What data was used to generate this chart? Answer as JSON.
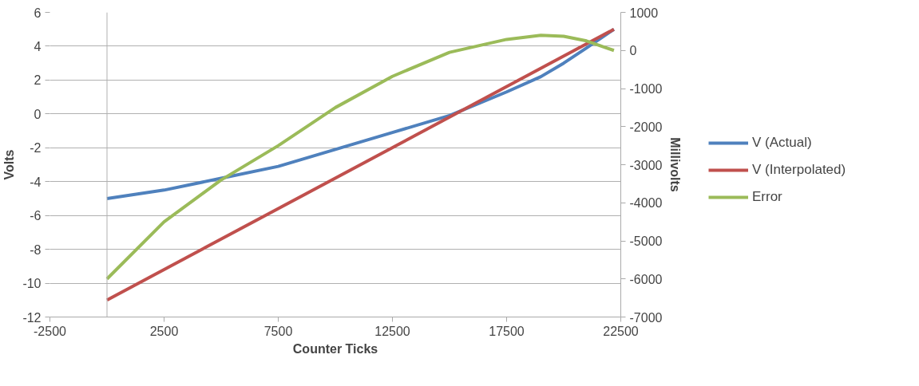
{
  "chart_data": {
    "type": "line",
    "xlabel": "Counter Ticks",
    "ylabel": "Volts",
    "y2label": "Millivolts",
    "x": [
      0,
      2500,
      5000,
      7500,
      10000,
      12500,
      15000,
      17500,
      19000,
      20000,
      21000,
      22200
    ],
    "series": [
      {
        "name": "V (Actual)",
        "color": "#4f81bd",
        "values": [
          -5.0,
          -4.5,
          -3.8,
          -3.1,
          -2.1,
          -1.1,
          -0.1,
          1.3,
          2.2,
          3.0,
          3.9,
          5.0
        ]
      },
      {
        "name": "V (Interpolated)",
        "color": "#c0504d",
        "x": [
          0,
          22200
        ],
        "values": [
          -11,
          5
        ]
      },
      {
        "name": "Error",
        "color": "#9bbb59",
        "axis": "y2",
        "values": [
          -6000,
          -4500,
          -3400,
          -2500,
          -1500,
          -680,
          -50,
          290,
          400,
          370,
          250,
          0
        ]
      }
    ],
    "xlim": [
      -2500,
      22500
    ],
    "xticks": [
      -2500,
      2500,
      7500,
      12500,
      17500,
      22500
    ],
    "ylim": [
      -12,
      6
    ],
    "yticks": [
      -12,
      -10,
      -8,
      -6,
      -4,
      -2,
      0,
      2,
      4,
      6
    ],
    "y2lim": [
      -7000,
      1000
    ],
    "y2ticks": [
      -7000,
      -6000,
      -5000,
      -4000,
      -3000,
      -2000,
      -1000,
      0,
      1000
    ],
    "grid": "y",
    "legend": "right",
    "marker": "none",
    "line_style": "solid"
  }
}
